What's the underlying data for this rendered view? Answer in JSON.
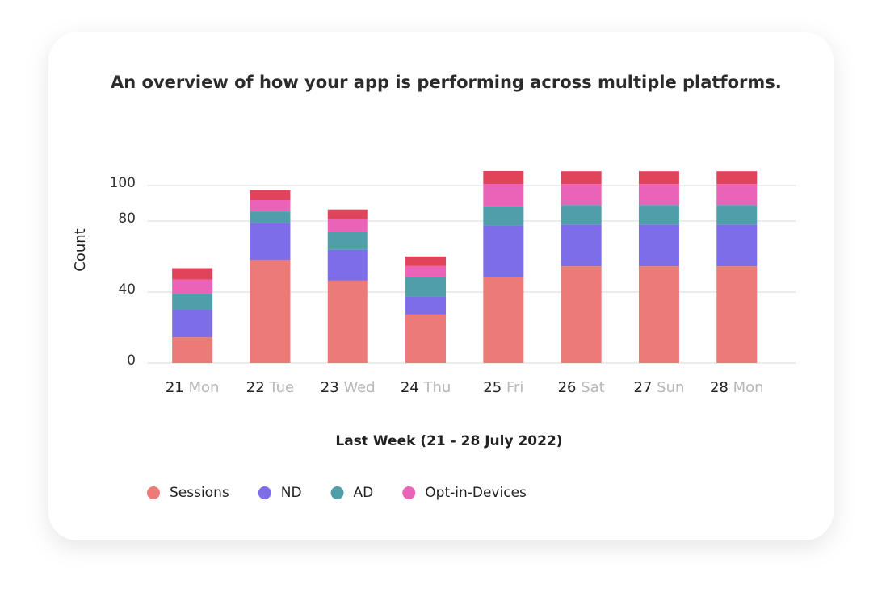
{
  "chart_data": {
    "type": "stacked-bar",
    "title": "An overview of how your app is performing across multiple platforms.",
    "y_label": "Count",
    "x_label": "Last Week (21 - 28 July 2022)",
    "categories": [
      "21",
      "22",
      "23",
      "24",
      "25",
      "26",
      "27",
      "28"
    ],
    "category_days": [
      "Mon",
      "Tue",
      "Wed",
      "Thu",
      "Fri",
      "Sat",
      "Sun",
      "Mon"
    ],
    "ylim": [
      0,
      120
    ],
    "yticks": [
      0,
      40,
      80,
      100
    ],
    "grid": true,
    "series": [
      {
        "name": "Sessions",
        "color": "#ec7a78",
        "values": [
          14.5,
          58,
          46.4,
          27.3,
          48.2,
          54.5,
          54.5,
          54.5
        ]
      },
      {
        "name": "ND",
        "color": "#7d6ee8",
        "values": [
          15.5,
          21,
          17.3,
          10,
          29.1,
          23.6,
          23.6,
          23.6
        ]
      },
      {
        "name": "AD",
        "color": "#4e9fa9",
        "values": [
          9,
          6.4,
          10,
          10.9,
          10.9,
          10.9,
          10.9,
          10.9
        ]
      },
      {
        "name": "Opt-in-Devices",
        "color": "#eb63b8",
        "values": [
          8,
          6.4,
          7.3,
          6.4,
          12.7,
          11.8,
          11.8,
          11.8
        ]
      },
      {
        "color": "#e0445a",
        "values": [
          6.4,
          5.5,
          5.5,
          5.5,
          7.3,
          7.3,
          7.3,
          7.3
        ]
      }
    ]
  }
}
